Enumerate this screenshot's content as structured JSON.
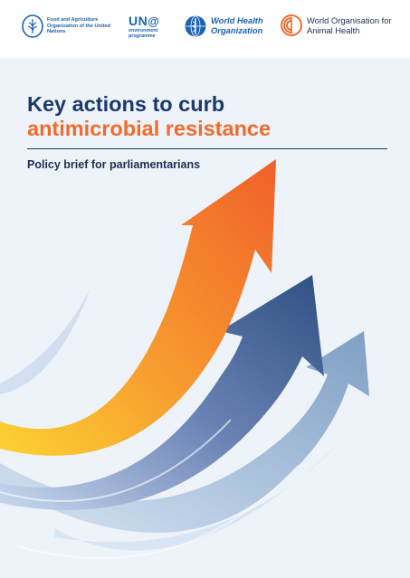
{
  "header": {
    "fao_name": "Food and Agriculture Organization of the United Nations",
    "unep_mark": "UN",
    "unep_name": "environment programme",
    "who_name": "World Health Organization",
    "woah_name": "World Organisation for Animal Health"
  },
  "cover": {
    "title_line1": "Key actions to curb",
    "title_line2": "antimicrobial resistance",
    "subtitle": "Policy brief for parliamentarians"
  },
  "colors": {
    "navy": "#1b3a6b",
    "orange": "#f26b2a",
    "background": "#eef3fa"
  }
}
